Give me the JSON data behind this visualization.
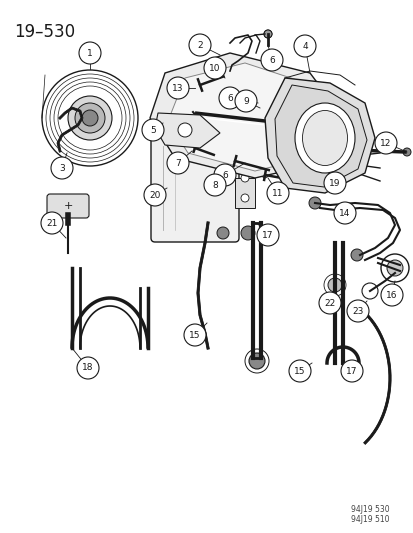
{
  "title": "19–530",
  "bg_color": "#ffffff",
  "line_color": "#1a1a1a",
  "label_color": "#1a1a1a",
  "watermark": [
    "94J19 530",
    "94J19 510"
  ],
  "title_fontsize": 12,
  "fig_w": 4.14,
  "fig_h": 5.33,
  "dpi": 100
}
